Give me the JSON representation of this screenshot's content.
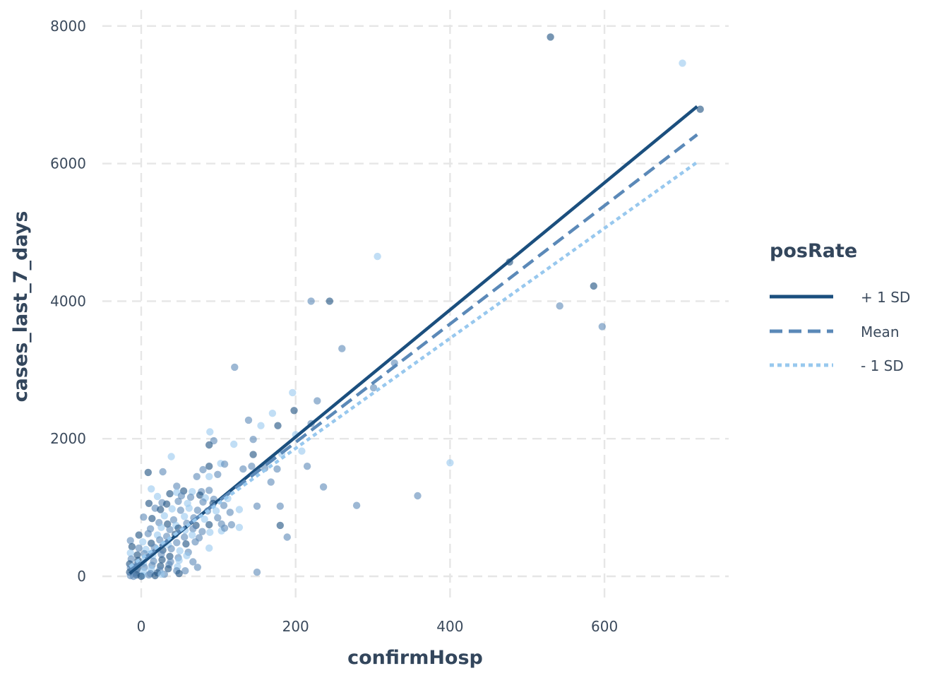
{
  "chart_data": {
    "type": "scatter",
    "xlabel": "confirmHosp",
    "ylabel": "cases_last_7_days",
    "xlim": [
      -50,
      760
    ],
    "ylim": [
      -350,
      8200
    ],
    "x_ticks": [
      0,
      200,
      400,
      600
    ],
    "y_ticks": [
      0,
      2000,
      4000,
      6000,
      8000
    ],
    "x_tick_labels": [
      "0",
      "200",
      "400",
      "600"
    ],
    "y_tick_labels": [
      "0",
      "2000",
      "4000",
      "6000",
      "8000"
    ],
    "grid": true,
    "legend": {
      "title": "posRate",
      "position": "right",
      "entries": [
        "+ 1 SD",
        "Mean",
        "- 1 SD"
      ]
    },
    "colors": {
      "plus_1_sd": "#1b4f7e",
      "mean": "#5b89b8",
      "minus_1_sd": "#98c8ee"
    },
    "lines": [
      {
        "name": "+ 1 SD",
        "style": "solid",
        "x": [
          -15,
          720
        ],
        "y": [
          40,
          6830
        ]
      },
      {
        "name": "Mean",
        "style": "dashed",
        "x": [
          -15,
          720
        ],
        "y": [
          100,
          6420
        ]
      },
      {
        "name": "- 1 SD",
        "style": "dotted",
        "x": [
          -15,
          720
        ],
        "y": [
          140,
          6020
        ]
      }
    ],
    "points": [
      [
        530,
        7840,
        0
      ],
      [
        701,
        7460,
        2
      ],
      [
        724,
        6790,
        0
      ],
      [
        477,
        4570,
        0
      ],
      [
        306,
        4650,
        2
      ],
      [
        220,
        4000,
        1
      ],
      [
        244,
        4000,
        0
      ],
      [
        586,
        4220,
        0
      ],
      [
        542,
        3930,
        1
      ],
      [
        597,
        3630,
        1
      ],
      [
        260,
        3310,
        1
      ],
      [
        328,
        3100,
        1
      ],
      [
        301,
        2740,
        1
      ],
      [
        121,
        3040,
        1
      ],
      [
        196,
        2670,
        2
      ],
      [
        228,
        2550,
        1
      ],
      [
        198,
        2410,
        0
      ],
      [
        170,
        2370,
        2
      ],
      [
        139,
        2270,
        1
      ],
      [
        155,
        2190,
        2
      ],
      [
        177,
        2190,
        0
      ],
      [
        220,
        2220,
        1
      ],
      [
        89,
        2100,
        2
      ],
      [
        145,
        1990,
        1
      ],
      [
        94,
        1970,
        1
      ],
      [
        120,
        1920,
        2
      ],
      [
        88,
        1910,
        0
      ],
      [
        200,
        2060,
        2
      ],
      [
        208,
        1820,
        2
      ],
      [
        182,
        1780,
        2
      ],
      [
        39,
        1740,
        2
      ],
      [
        145,
        1770,
        0
      ],
      [
        103,
        1640,
        2
      ],
      [
        108,
        1630,
        1
      ],
      [
        88,
        1600,
        0
      ],
      [
        132,
        1560,
        1
      ],
      [
        160,
        1570,
        1
      ],
      [
        143,
        1600,
        1
      ],
      [
        176,
        1560,
        1
      ],
      [
        215,
        1600,
        1
      ],
      [
        400,
        1650,
        2
      ],
      [
        9,
        1510,
        0
      ],
      [
        28,
        1520,
        1
      ],
      [
        80,
        1550,
        1
      ],
      [
        99,
        1480,
        1
      ],
      [
        72,
        1450,
        1
      ],
      [
        88,
        1450,
        2
      ],
      [
        168,
        1370,
        1
      ],
      [
        236,
        1300,
        1
      ],
      [
        13,
        1270,
        2
      ],
      [
        46,
        1310,
        1
      ],
      [
        55,
        1240,
        0
      ],
      [
        66,
        1230,
        2
      ],
      [
        78,
        1230,
        1
      ],
      [
        88,
        1250,
        1
      ],
      [
        358,
        1170,
        1
      ],
      [
        21,
        1160,
        2
      ],
      [
        37,
        1200,
        0
      ],
      [
        46,
        1220,
        2
      ],
      [
        52,
        1170,
        1
      ],
      [
        64,
        1150,
        1
      ],
      [
        76,
        1180,
        0
      ],
      [
        83,
        1140,
        2
      ],
      [
        94,
        1120,
        1
      ],
      [
        112,
        1130,
        2
      ],
      [
        10,
        1060,
        0
      ],
      [
        27,
        1070,
        1
      ],
      [
        33,
        1050,
        0
      ],
      [
        48,
        1090,
        1
      ],
      [
        60,
        1060,
        2
      ],
      [
        80,
        1080,
        1
      ],
      [
        93,
        1060,
        0
      ],
      [
        107,
        1030,
        1
      ],
      [
        150,
        1020,
        1
      ],
      [
        180,
        1020,
        1
      ],
      [
        279,
        1030,
        1
      ],
      [
        18,
        990,
        1
      ],
      [
        25,
        970,
        0
      ],
      [
        40,
        980,
        2
      ],
      [
        51,
        960,
        1
      ],
      [
        62,
        990,
        2
      ],
      [
        73,
        960,
        1
      ],
      [
        86,
        950,
        1
      ],
      [
        97,
        950,
        2
      ],
      [
        115,
        930,
        1
      ],
      [
        127,
        970,
        2
      ],
      [
        3,
        860,
        1
      ],
      [
        14,
        840,
        0
      ],
      [
        30,
        880,
        2
      ],
      [
        42,
        820,
        1
      ],
      [
        56,
        870,
        2
      ],
      [
        68,
        850,
        1
      ],
      [
        82,
        830,
        2
      ],
      [
        99,
        850,
        1
      ],
      [
        23,
        780,
        1
      ],
      [
        34,
        760,
        0
      ],
      [
        45,
        740,
        2
      ],
      [
        59,
        770,
        1
      ],
      [
        71,
        740,
        0
      ],
      [
        88,
        750,
        0
      ],
      [
        104,
        760,
        1
      ],
      [
        117,
        750,
        1
      ],
      [
        127,
        710,
        2
      ],
      [
        180,
        740,
        0
      ],
      [
        12,
        690,
        1
      ],
      [
        26,
        710,
        2
      ],
      [
        37,
        680,
        1
      ],
      [
        48,
        700,
        0
      ],
      [
        57,
        670,
        2
      ],
      [
        67,
        690,
        1
      ],
      [
        79,
        650,
        1
      ],
      [
        89,
        640,
        2
      ],
      [
        104,
        660,
        2
      ],
      [
        108,
        700,
        1
      ],
      [
        -3,
        600,
        0
      ],
      [
        9,
        620,
        1
      ],
      [
        21,
        600,
        2
      ],
      [
        33,
        580,
        1
      ],
      [
        44,
        610,
        0
      ],
      [
        56,
        570,
        1
      ],
      [
        66,
        600,
        2
      ],
      [
        75,
        560,
        1
      ],
      [
        189,
        570,
        1
      ],
      [
        -14,
        520,
        1
      ],
      [
        2,
        500,
        2
      ],
      [
        13,
        480,
        0
      ],
      [
        24,
        530,
        1
      ],
      [
        35,
        460,
        2
      ],
      [
        46,
        490,
        1
      ],
      [
        58,
        470,
        0
      ],
      [
        70,
        500,
        1
      ],
      [
        88,
        410,
        2
      ],
      [
        -12,
        430,
        0
      ],
      [
        -3,
        410,
        1
      ],
      [
        6,
        390,
        2
      ],
      [
        17,
        420,
        1
      ],
      [
        28,
        380,
        0
      ],
      [
        39,
        400,
        1
      ],
      [
        50,
        370,
        2
      ],
      [
        61,
        350,
        1
      ],
      [
        -14,
        340,
        2
      ],
      [
        -5,
        310,
        0
      ],
      [
        4,
        330,
        1
      ],
      [
        15,
        300,
        2
      ],
      [
        26,
        320,
        1
      ],
      [
        37,
        290,
        0
      ],
      [
        48,
        270,
        1
      ],
      [
        59,
        300,
        2
      ],
      [
        -13,
        250,
        1
      ],
      [
        -4,
        230,
        0
      ],
      [
        5,
        260,
        2
      ],
      [
        16,
        220,
        1
      ],
      [
        27,
        240,
        0
      ],
      [
        38,
        210,
        1
      ],
      [
        49,
        230,
        2
      ],
      [
        67,
        210,
        1
      ],
      [
        -15,
        180,
        0
      ],
      [
        -6,
        170,
        1
      ],
      [
        3,
        190,
        2
      ],
      [
        14,
        160,
        1
      ],
      [
        25,
        150,
        0
      ],
      [
        36,
        170,
        1
      ],
      [
        47,
        140,
        2
      ],
      [
        -14,
        120,
        1
      ],
      [
        -5,
        110,
        0
      ],
      [
        4,
        130,
        1
      ],
      [
        13,
        100,
        2
      ],
      [
        24,
        90,
        1
      ],
      [
        35,
        110,
        0
      ],
      [
        46,
        80,
        1
      ],
      [
        57,
        80,
        1
      ],
      [
        73,
        130,
        1
      ],
      [
        -15,
        60,
        0
      ],
      [
        -6,
        50,
        1
      ],
      [
        3,
        70,
        2
      ],
      [
        12,
        40,
        1
      ],
      [
        21,
        50,
        0
      ],
      [
        30,
        30,
        1
      ],
      [
        49,
        40,
        0
      ],
      [
        150,
        60,
        1
      ],
      [
        -14,
        10,
        1
      ],
      [
        -6,
        20,
        0
      ],
      [
        2,
        10,
        2
      ],
      [
        10,
        20,
        1
      ],
      [
        18,
        10,
        0
      ],
      [
        26,
        30,
        2
      ],
      [
        -10,
        0,
        1
      ],
      [
        0,
        0,
        0
      ]
    ]
  }
}
